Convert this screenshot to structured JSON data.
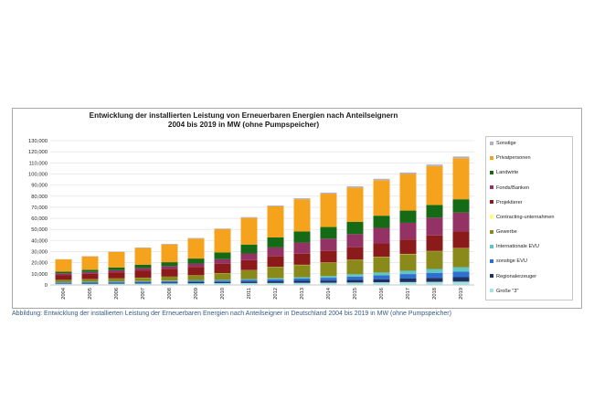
{
  "caption": "Abbildung: Entwicklung der installierten Leistung der Erneuerbaren Energien nach Anteilseigner in Deutschland 2004 bis 2019 in MW (ohne Pumpspeicher)",
  "chart_data": {
    "type": "bar",
    "stacked": true,
    "title_line1": "Entwicklung der installierten Leistung von Erneuerbaren Energien nach Anteilseignern",
    "title_line2": "2004 bis 2019 in MW (ohne Pumpspeicher)",
    "xlabel": "",
    "ylabel": "",
    "ylim": [
      0,
      130000
    ],
    "yticks": [
      0,
      10000,
      20000,
      30000,
      40000,
      50000,
      60000,
      70000,
      80000,
      90000,
      100000,
      110000,
      120000,
      130000
    ],
    "ytick_labels": [
      "0",
      "10,000",
      "20,000",
      "30,000",
      "40,000",
      "50,000",
      "60,000",
      "70,000",
      "80,000",
      "90,000",
      "100,000",
      "110,000",
      "120,000",
      "130,000"
    ],
    "grid": true,
    "legend_position": "right",
    "categories": [
      "2004",
      "2005",
      "2006",
      "2007",
      "2008",
      "2009",
      "2010",
      "2011",
      "2012",
      "2013",
      "2014",
      "2015",
      "2016",
      "2017",
      "2018",
      "2019"
    ],
    "series": [
      {
        "name": "Große \"3\"",
        "color": "#a8e0e0",
        "values": [
          1000,
          1100,
          1200,
          1300,
          1400,
          1500,
          1600,
          1700,
          1800,
          1900,
          2000,
          2200,
          2400,
          2600,
          2800,
          3000
        ]
      },
      {
        "name": "Regionalerzeuger",
        "color": "#1f2f5e",
        "values": [
          500,
          600,
          700,
          800,
          900,
          1000,
          1100,
          1300,
          1500,
          1800,
          2000,
          2400,
          2800,
          3200,
          3600,
          4000
        ]
      },
      {
        "name": "sonstige EVU",
        "color": "#2e6fd0",
        "values": [
          700,
          800,
          900,
          1000,
          1100,
          1200,
          1300,
          1500,
          1800,
          2100,
          2500,
          3000,
          3500,
          4000,
          4500,
          5000
        ]
      },
      {
        "name": "Internationale EVU",
        "color": "#5fc4c4",
        "values": [
          300,
          300,
          400,
          400,
          500,
          500,
          600,
          800,
          1000,
          1200,
          1500,
          2000,
          2500,
          3000,
          3500,
          4000
        ]
      },
      {
        "name": "Gewerbe",
        "color": "#8a8a1a",
        "values": [
          2000,
          2300,
          2600,
          3000,
          3500,
          4500,
          6000,
          8000,
          10000,
          11000,
          12000,
          13000,
          14000,
          15000,
          16000,
          17000
        ]
      },
      {
        "name": "Contracting-unternahmen",
        "color": "#ffff66",
        "values": [
          100,
          100,
          100,
          100,
          100,
          100,
          100,
          100,
          200,
          200,
          200,
          200,
          200,
          200,
          200,
          200
        ]
      },
      {
        "name": "Projektierer",
        "color": "#8b1a1a",
        "values": [
          4400,
          4800,
          5500,
          6500,
          7000,
          7500,
          8500,
          9000,
          9500,
          10000,
          10500,
          11000,
          12000,
          13000,
          14000,
          15000
        ]
      },
      {
        "name": "Fonds/Banken",
        "color": "#943266",
        "values": [
          1500,
          1700,
          1900,
          2200,
          2500,
          3000,
          4000,
          6000,
          8000,
          10000,
          11000,
          12000,
          14000,
          15000,
          16000,
          17000
        ]
      },
      {
        "name": "Landwirte",
        "color": "#156b15",
        "values": [
          1500,
          2000,
          2500,
          3000,
          3500,
          4500,
          6000,
          8000,
          9000,
          10000,
          10500,
          11000,
          11000,
          11000,
          11500,
          12000
        ]
      },
      {
        "name": "Privatpersonen",
        "color": "#f5a21c",
        "values": [
          11000,
          12000,
          14000,
          15000,
          16000,
          18000,
          21000,
          24000,
          28000,
          29000,
          30000,
          31000,
          32000,
          33000,
          35000,
          37000
        ]
      },
      {
        "name": "Sonstige",
        "color": "#b0b0c8",
        "values": [
          200,
          300,
          300,
          400,
          500,
          500,
          600,
          700,
          800,
          900,
          1000,
          1100,
          1200,
          1300,
          1400,
          1500
        ]
      }
    ]
  }
}
